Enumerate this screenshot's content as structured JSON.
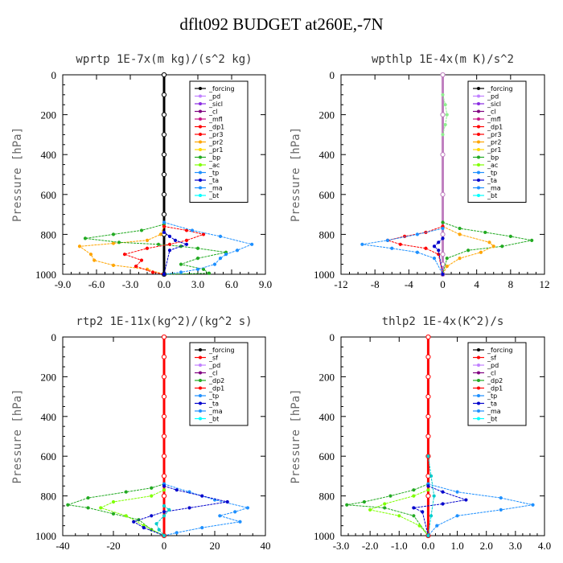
{
  "title": "dflt092  BUDGET at260E,-7N",
  "chart_data": [
    {
      "type": "line",
      "title": "wprtp  1E-7x(m kg)/(s^2 kg)",
      "ylabel": "Pressure [hPa]",
      "xlim": [
        -9,
        9
      ],
      "ylim": [
        1000,
        0
      ],
      "xticks": [
        "-9.0",
        "-6.0",
        "-3.0",
        "0.0",
        "3.0",
        "6.0",
        "9.0"
      ],
      "yticks": [
        "0",
        "200",
        "400",
        "600",
        "800",
        "1000"
      ],
      "legend": [
        "_forcing",
        "_pd",
        "_sicl",
        "_cl",
        "_mfl",
        "_dp1",
        "_pr3",
        "_pr2",
        "_pr1",
        "_bp",
        "_ac",
        "_tp",
        "_ta",
        "_ma",
        "_bt"
      ],
      "series": [
        {
          "name": "_forcing",
          "color": "#000000",
          "x": [
            0,
            0,
            0,
            0,
            0,
            0,
            0,
            0,
            0,
            0
          ],
          "y": [
            0,
            100,
            200,
            300,
            400,
            500,
            600,
            700,
            800,
            1000
          ]
        },
        {
          "name": "_pr1",
          "color": "#ffa500",
          "x": [
            0,
            -0.3,
            -1.5,
            -4.5,
            -7.5,
            -6.5,
            -6.2,
            -4.5,
            -1.5,
            0
          ],
          "y": [
            760,
            800,
            830,
            845,
            860,
            900,
            930,
            955,
            975,
            1000
          ]
        },
        {
          "name": "_bp",
          "color": "#22aa22",
          "x": [
            0,
            -2,
            -4.5,
            -7,
            -4,
            -0.5,
            1.5,
            3,
            5.5,
            3,
            1.5,
            3.5,
            4,
            0
          ],
          "y": [
            750,
            780,
            800,
            820,
            840,
            850,
            860,
            870,
            890,
            920,
            950,
            975,
            995,
            1000
          ]
        },
        {
          "name": "_dp1",
          "color": "#ff0000",
          "x": [
            0,
            2,
            3.5,
            2,
            0.5,
            -1.5,
            -3.5,
            -2,
            -2.5,
            -1,
            0
          ],
          "y": [
            760,
            780,
            800,
            830,
            850,
            870,
            900,
            930,
            960,
            990,
            1000
          ]
        },
        {
          "name": "_ma",
          "color": "#1e90ff",
          "x": [
            0,
            2.5,
            5,
            7.8,
            6.5,
            5.5,
            5,
            4.5,
            3,
            1.5,
            0
          ],
          "y": [
            740,
            780,
            810,
            850,
            880,
            900,
            920,
            950,
            975,
            990,
            1000
          ]
        },
        {
          "name": "_ta",
          "color": "#0000cc",
          "x": [
            0,
            0.5,
            1,
            2,
            0.5,
            0
          ],
          "y": [
            790,
            810,
            830,
            850,
            880,
            1000
          ]
        }
      ]
    },
    {
      "type": "line",
      "title": "wpthlp  1E-4x(m K)/s^2",
      "ylabel": "Pressure [hPa]",
      "xlim": [
        -12,
        12
      ],
      "ylim": [
        1000,
        0
      ],
      "xticks": [
        "-12",
        "-8",
        "-4",
        "0",
        "4",
        "8",
        "12"
      ],
      "yticks": [
        "0",
        "200",
        "400",
        "600",
        "800",
        "1000"
      ],
      "legend": [
        "_forcing",
        "_pd",
        "_sicl",
        "_cl",
        "_mfl",
        "_dp1",
        "_pr3",
        "_pr2",
        "_pr1",
        "_bp",
        "_ac",
        "_tp",
        "_ta",
        "_ma",
        "_bt"
      ],
      "series": [
        {
          "name": "_forcing",
          "color": "#c080c0",
          "x": [
            0,
            0,
            0,
            0,
            0,
            0,
            0,
            0
          ],
          "y": [
            0,
            200,
            400,
            600,
            800,
            900,
            950,
            1000
          ]
        },
        {
          "name": "_bp",
          "color": "#22aa22",
          "x": [
            0,
            2,
            5,
            8,
            10.5,
            7,
            3,
            0.5,
            0
          ],
          "y": [
            740,
            770,
            790,
            810,
            830,
            860,
            880,
            920,
            1000
          ]
        },
        {
          "name": "_pr1",
          "color": "#ffa500",
          "x": [
            0,
            2,
            5.5,
            6,
            4.5,
            2,
            0.5,
            0
          ],
          "y": [
            760,
            800,
            840,
            860,
            890,
            920,
            960,
            1000
          ]
        },
        {
          "name": "_dp1",
          "color": "#ff0000",
          "x": [
            0,
            -2,
            -4.5,
            -6.5,
            -5,
            -2,
            -0.5,
            0
          ],
          "y": [
            760,
            790,
            810,
            830,
            850,
            870,
            900,
            1000
          ]
        },
        {
          "name": "_ma",
          "color": "#1e90ff",
          "x": [
            0,
            -3,
            -6.5,
            -9.5,
            -6,
            -3,
            -1,
            0
          ],
          "y": [
            770,
            800,
            830,
            850,
            870,
            890,
            920,
            1000
          ]
        },
        {
          "name": "_ta",
          "color": "#0000cc",
          "x": [
            0,
            -0.5,
            -1,
            -0.5,
            0
          ],
          "y": [
            820,
            840,
            860,
            880,
            1000
          ]
        },
        {
          "name": "_ac",
          "color": "#90ee90",
          "x": [
            0,
            0.3,
            0.5,
            0.3,
            0
          ],
          "y": [
            100,
            150,
            200,
            250,
            300
          ]
        }
      ]
    },
    {
      "type": "line",
      "title": "rtp2  1E-11x(kg^2)/(kg^2 s)",
      "ylabel": "Pressure [hPa]",
      "xlim": [
        -40,
        40
      ],
      "ylim": [
        1000,
        0
      ],
      "xticks": [
        "-40",
        "-20",
        "0",
        "20",
        "40"
      ],
      "yticks": [
        "0",
        "200",
        "400",
        "600",
        "800",
        "1000"
      ],
      "legend": [
        "_forcing",
        "_sf",
        "_pd",
        "_cl",
        "_dp2",
        "_dp1",
        "_tp",
        "_ta",
        "_ma",
        "_bt"
      ],
      "series": [
        {
          "name": "_forcing",
          "color": "#ff0000",
          "x": [
            0,
            0,
            0,
            0,
            0,
            0,
            0,
            0,
            0,
            0
          ],
          "y": [
            0,
            100,
            200,
            300,
            400,
            500,
            600,
            700,
            800,
            1000
          ]
        },
        {
          "name": "_dp2",
          "color": "#22aa22",
          "x": [
            0,
            -5,
            -15,
            -30,
            -38,
            -30,
            -20,
            -10,
            -5,
            0
          ],
          "y": [
            740,
            760,
            780,
            810,
            845,
            860,
            890,
            920,
            970,
            1000
          ]
        },
        {
          "name": "_dp1",
          "color": "#7fff00",
          "x": [
            0,
            -5,
            -20,
            -25,
            -15,
            -8,
            0
          ],
          "y": [
            770,
            800,
            830,
            860,
            900,
            950,
            1000
          ]
        },
        {
          "name": "_tp",
          "color": "#1e90ff",
          "x": [
            0,
            10,
            20,
            33,
            28,
            22,
            30,
            15,
            5,
            0
          ],
          "y": [
            740,
            780,
            820,
            860,
            880,
            900,
            930,
            960,
            985,
            1000
          ]
        },
        {
          "name": "_ta",
          "color": "#0000cc",
          "x": [
            0,
            5,
            15,
            25,
            10,
            0,
            -5,
            -12,
            -8,
            0
          ],
          "y": [
            750,
            770,
            800,
            830,
            860,
            880,
            900,
            930,
            960,
            1000
          ]
        },
        {
          "name": "_ma",
          "color": "#00cccc",
          "x": [
            0,
            2,
            0,
            -3,
            -2,
            0
          ],
          "y": [
            850,
            870,
            900,
            940,
            970,
            1000
          ]
        }
      ]
    },
    {
      "type": "line",
      "title": "thlp2  1E-4x(K^2)/s",
      "ylabel": "Pressure [hPa]",
      "xlim": [
        -3,
        4
      ],
      "ylim": [
        1000,
        0
      ],
      "xticks": [
        "-3.0",
        "-2.0",
        "-1.0",
        "0.0",
        "1.0",
        "2.0",
        "3.0",
        "4.0"
      ],
      "yticks": [
        "0",
        "200",
        "400",
        "600",
        "800",
        "1000"
      ],
      "legend": [
        "_forcing",
        "_sf",
        "_pd",
        "_cl",
        "_dp2",
        "_dp1",
        "_tp",
        "_ta",
        "_ma",
        "_bt"
      ],
      "series": [
        {
          "name": "_forcing",
          "color": "#ff0000",
          "x": [
            0,
            0,
            0,
            0,
            0,
            0,
            0,
            0,
            0,
            0
          ],
          "y": [
            0,
            100,
            200,
            300,
            400,
            500,
            600,
            700,
            800,
            1000
          ]
        },
        {
          "name": "_dp2",
          "color": "#22aa22",
          "x": [
            0,
            -0.5,
            -1.3,
            -2.2,
            -2.8,
            -1.5,
            -0.5,
            0
          ],
          "y": [
            740,
            770,
            800,
            830,
            845,
            860,
            900,
            1000
          ]
        },
        {
          "name": "_dp1",
          "color": "#7fff00",
          "x": [
            0,
            -0.5,
            -1.5,
            -2,
            -1,
            -0.3,
            0
          ],
          "y": [
            770,
            800,
            840,
            870,
            900,
            950,
            1000
          ]
        },
        {
          "name": "_tp",
          "color": "#1e90ff",
          "x": [
            0,
            1,
            2.5,
            3.6,
            2.5,
            1,
            0.3,
            0
          ],
          "y": [
            740,
            780,
            810,
            845,
            870,
            900,
            950,
            1000
          ]
        },
        {
          "name": "_ta",
          "color": "#0000cc",
          "x": [
            0,
            0.5,
            1.3,
            0.5,
            -0.5,
            -0.2,
            0
          ],
          "y": [
            750,
            780,
            820,
            840,
            860,
            880,
            1000
          ]
        },
        {
          "name": "_ma",
          "color": "#00cccc",
          "x": [
            0,
            0.1,
            0.2,
            0.1,
            0
          ],
          "y": [
            600,
            700,
            800,
            900,
            1000
          ]
        }
      ]
    }
  ],
  "legend_colors": {
    "_forcing": "#000000",
    "_pd": "#c080ff",
    "_sicl": "#8a2be2",
    "_cl": "#800080",
    "_mfl": "#c71585",
    "_dp1": "#ff0000",
    "_pr3": "#ff0000",
    "_pr2": "#ffa500",
    "_pr1": "#ffd700",
    "_bp": "#22aa22",
    "_ac": "#7fff00",
    "_tp": "#1e90ff",
    "_ta": "#0000cc",
    "_ma": "#1e90ff",
    "_bt": "#00ffff",
    "_sf": "#ff0000",
    "_dp2": "#22aa22"
  }
}
